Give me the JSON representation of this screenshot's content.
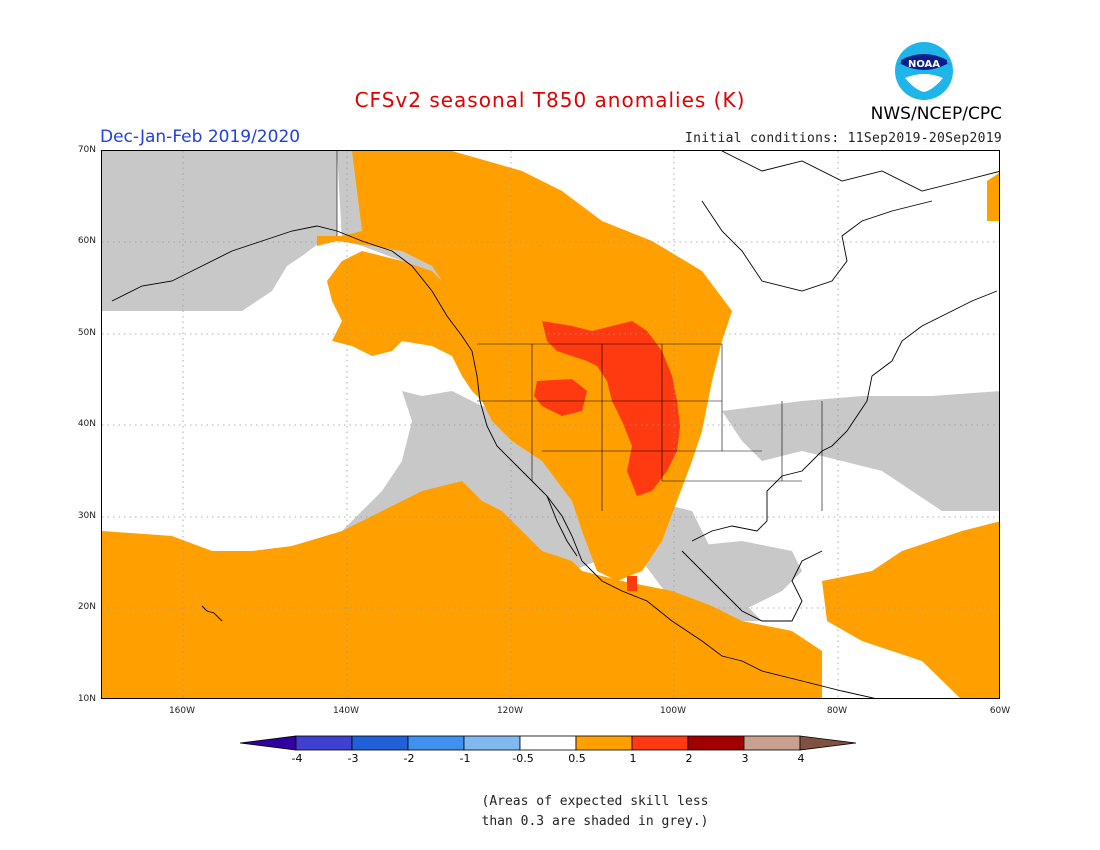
{
  "title": "CFSv2 seasonal T850 anomalies (K)",
  "period": "Dec-Jan-Feb 2019/2020",
  "initial_conditions": "Initial conditions: 11Sep2019-20Sep2019",
  "agency": "NWS/NCEP/CPC",
  "logo_text": "NOAA",
  "map": {
    "lat_labels": [
      "70N",
      "60N",
      "50N",
      "40N",
      "30N",
      "20N",
      "10N"
    ],
    "lon_labels": [
      "160W",
      "140W",
      "120W",
      "100W",
      "80W",
      "60W"
    ],
    "colors": {
      "orange": "#ffa000",
      "red": "#ff3a10",
      "grey": "#c8c8c8",
      "white": "#ffffff"
    }
  },
  "colorbar": {
    "labels": [
      "-4",
      "-3",
      "-2",
      "-1",
      "-0.5",
      "0.5",
      "1",
      "2",
      "3",
      "4"
    ],
    "colors": [
      "#3000a0",
      "#4040d0",
      "#2060d8",
      "#4090f0",
      "#80b8f0",
      "#ffffff",
      "#ffa000",
      "#ff3a10",
      "#a00000",
      "#c8a090",
      "#805040"
    ]
  },
  "footnote": {
    "line1": "(Areas of expected skill less",
    "line2": "than 0.3 are shaded in grey.)"
  }
}
